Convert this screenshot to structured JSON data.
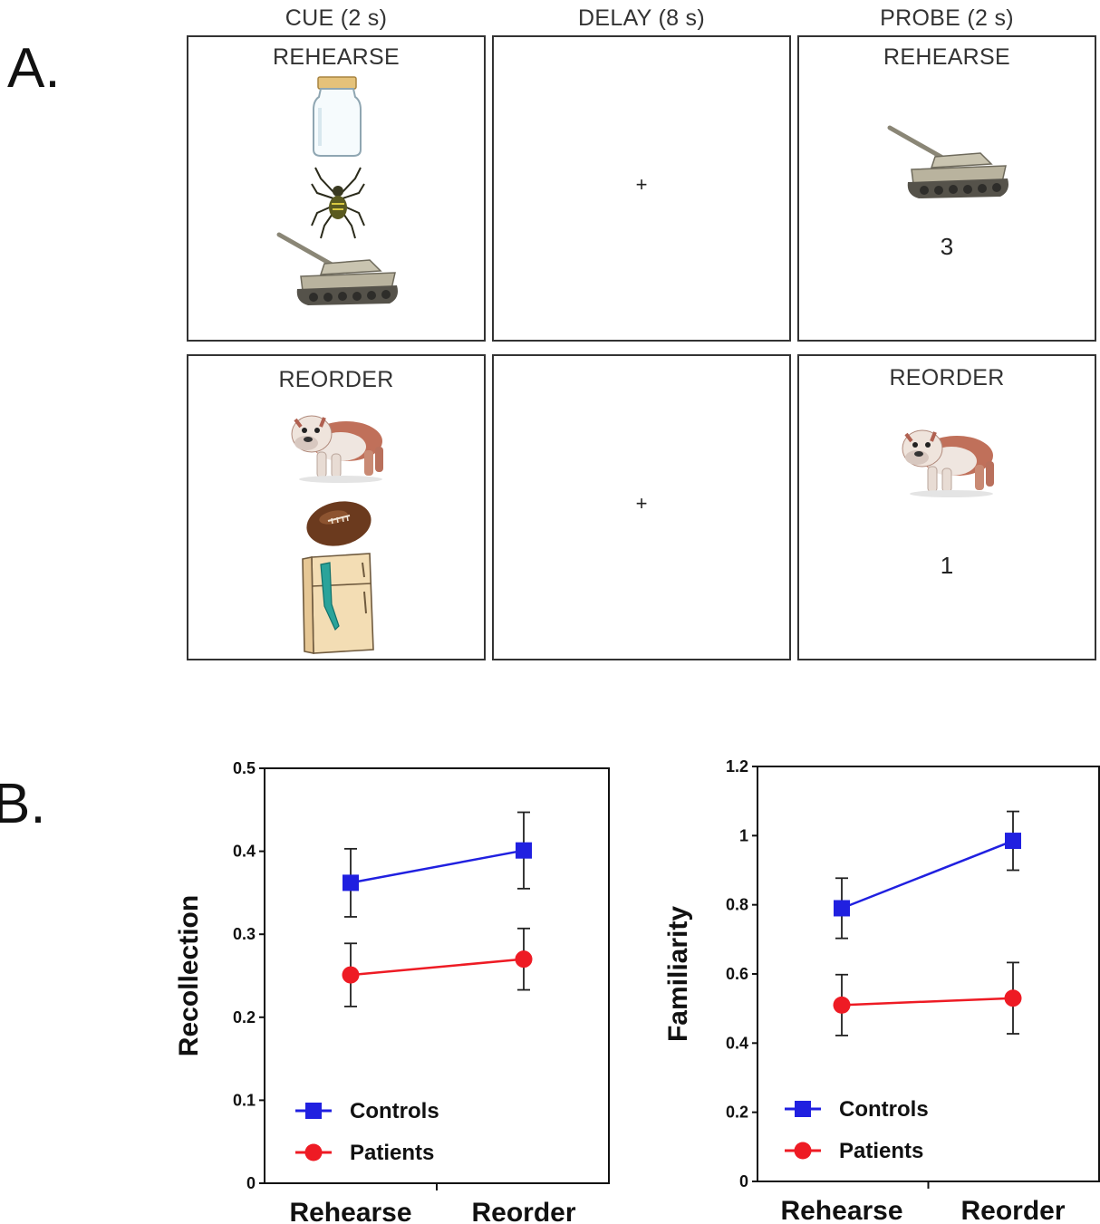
{
  "panel_a": {
    "letter": "A.",
    "headers": {
      "cue": "CUE (2 s)",
      "delay": "DELAY (8 s)",
      "probe": "PROBE (2 s)"
    },
    "rehearse": {
      "cue_label": "REHEARSE",
      "probe_label": "REHEARSE",
      "fixation": "+",
      "probe_number": "3",
      "cue_items": [
        "jar-icon",
        "spider-icon",
        "tank-icon"
      ],
      "probe_item": "tank-icon"
    },
    "reorder": {
      "cue_label": "REORDER",
      "probe_label": "REORDER",
      "fixation": "+",
      "probe_number": "1",
      "cue_items": [
        "bulldog-icon",
        "football-icon",
        "refrigerator-icon"
      ],
      "probe_item": "bulldog-icon"
    }
  },
  "panel_b": {
    "letter": "B."
  },
  "colors": {
    "controls": "#2020e0",
    "patients": "#ee1b24"
  },
  "chart_data": [
    {
      "type": "line",
      "ylabel": "Recollection",
      "categories": [
        "Rehearse",
        "Reorder"
      ],
      "ylim": [
        0,
        0.5
      ],
      "yticks": [
        0,
        0.1,
        0.2,
        0.3,
        0.4,
        0.5
      ],
      "ytick_labels": [
        "0",
        "0.1",
        "0.2",
        "0.3",
        "0.4",
        "0.5"
      ],
      "legend": "bottom-left",
      "series": [
        {
          "name": "Controls",
          "marker": "square",
          "values": [
            0.362,
            0.401
          ],
          "error": [
            0.041,
            0.046
          ]
        },
        {
          "name": "Patients",
          "marker": "circle",
          "values": [
            0.251,
            0.27
          ],
          "error": [
            0.038,
            0.037
          ]
        }
      ]
    },
    {
      "type": "line",
      "ylabel": "Familiarity",
      "categories": [
        "Rehearse",
        "Reorder"
      ],
      "ylim": [
        0,
        1.2
      ],
      "yticks": [
        0,
        0.2,
        0.4,
        0.6,
        0.8,
        1.0,
        1.2
      ],
      "ytick_labels": [
        "0",
        "0.2",
        "0.4",
        "0.6",
        "0.8",
        "1",
        "1.2"
      ],
      "legend": "bottom-left",
      "series": [
        {
          "name": "Controls",
          "marker": "square",
          "values": [
            0.79,
            0.985
          ],
          "error": [
            0.087,
            0.085
          ]
        },
        {
          "name": "Patients",
          "marker": "circle",
          "values": [
            0.51,
            0.53
          ],
          "error": [
            0.088,
            0.103
          ]
        }
      ]
    }
  ]
}
